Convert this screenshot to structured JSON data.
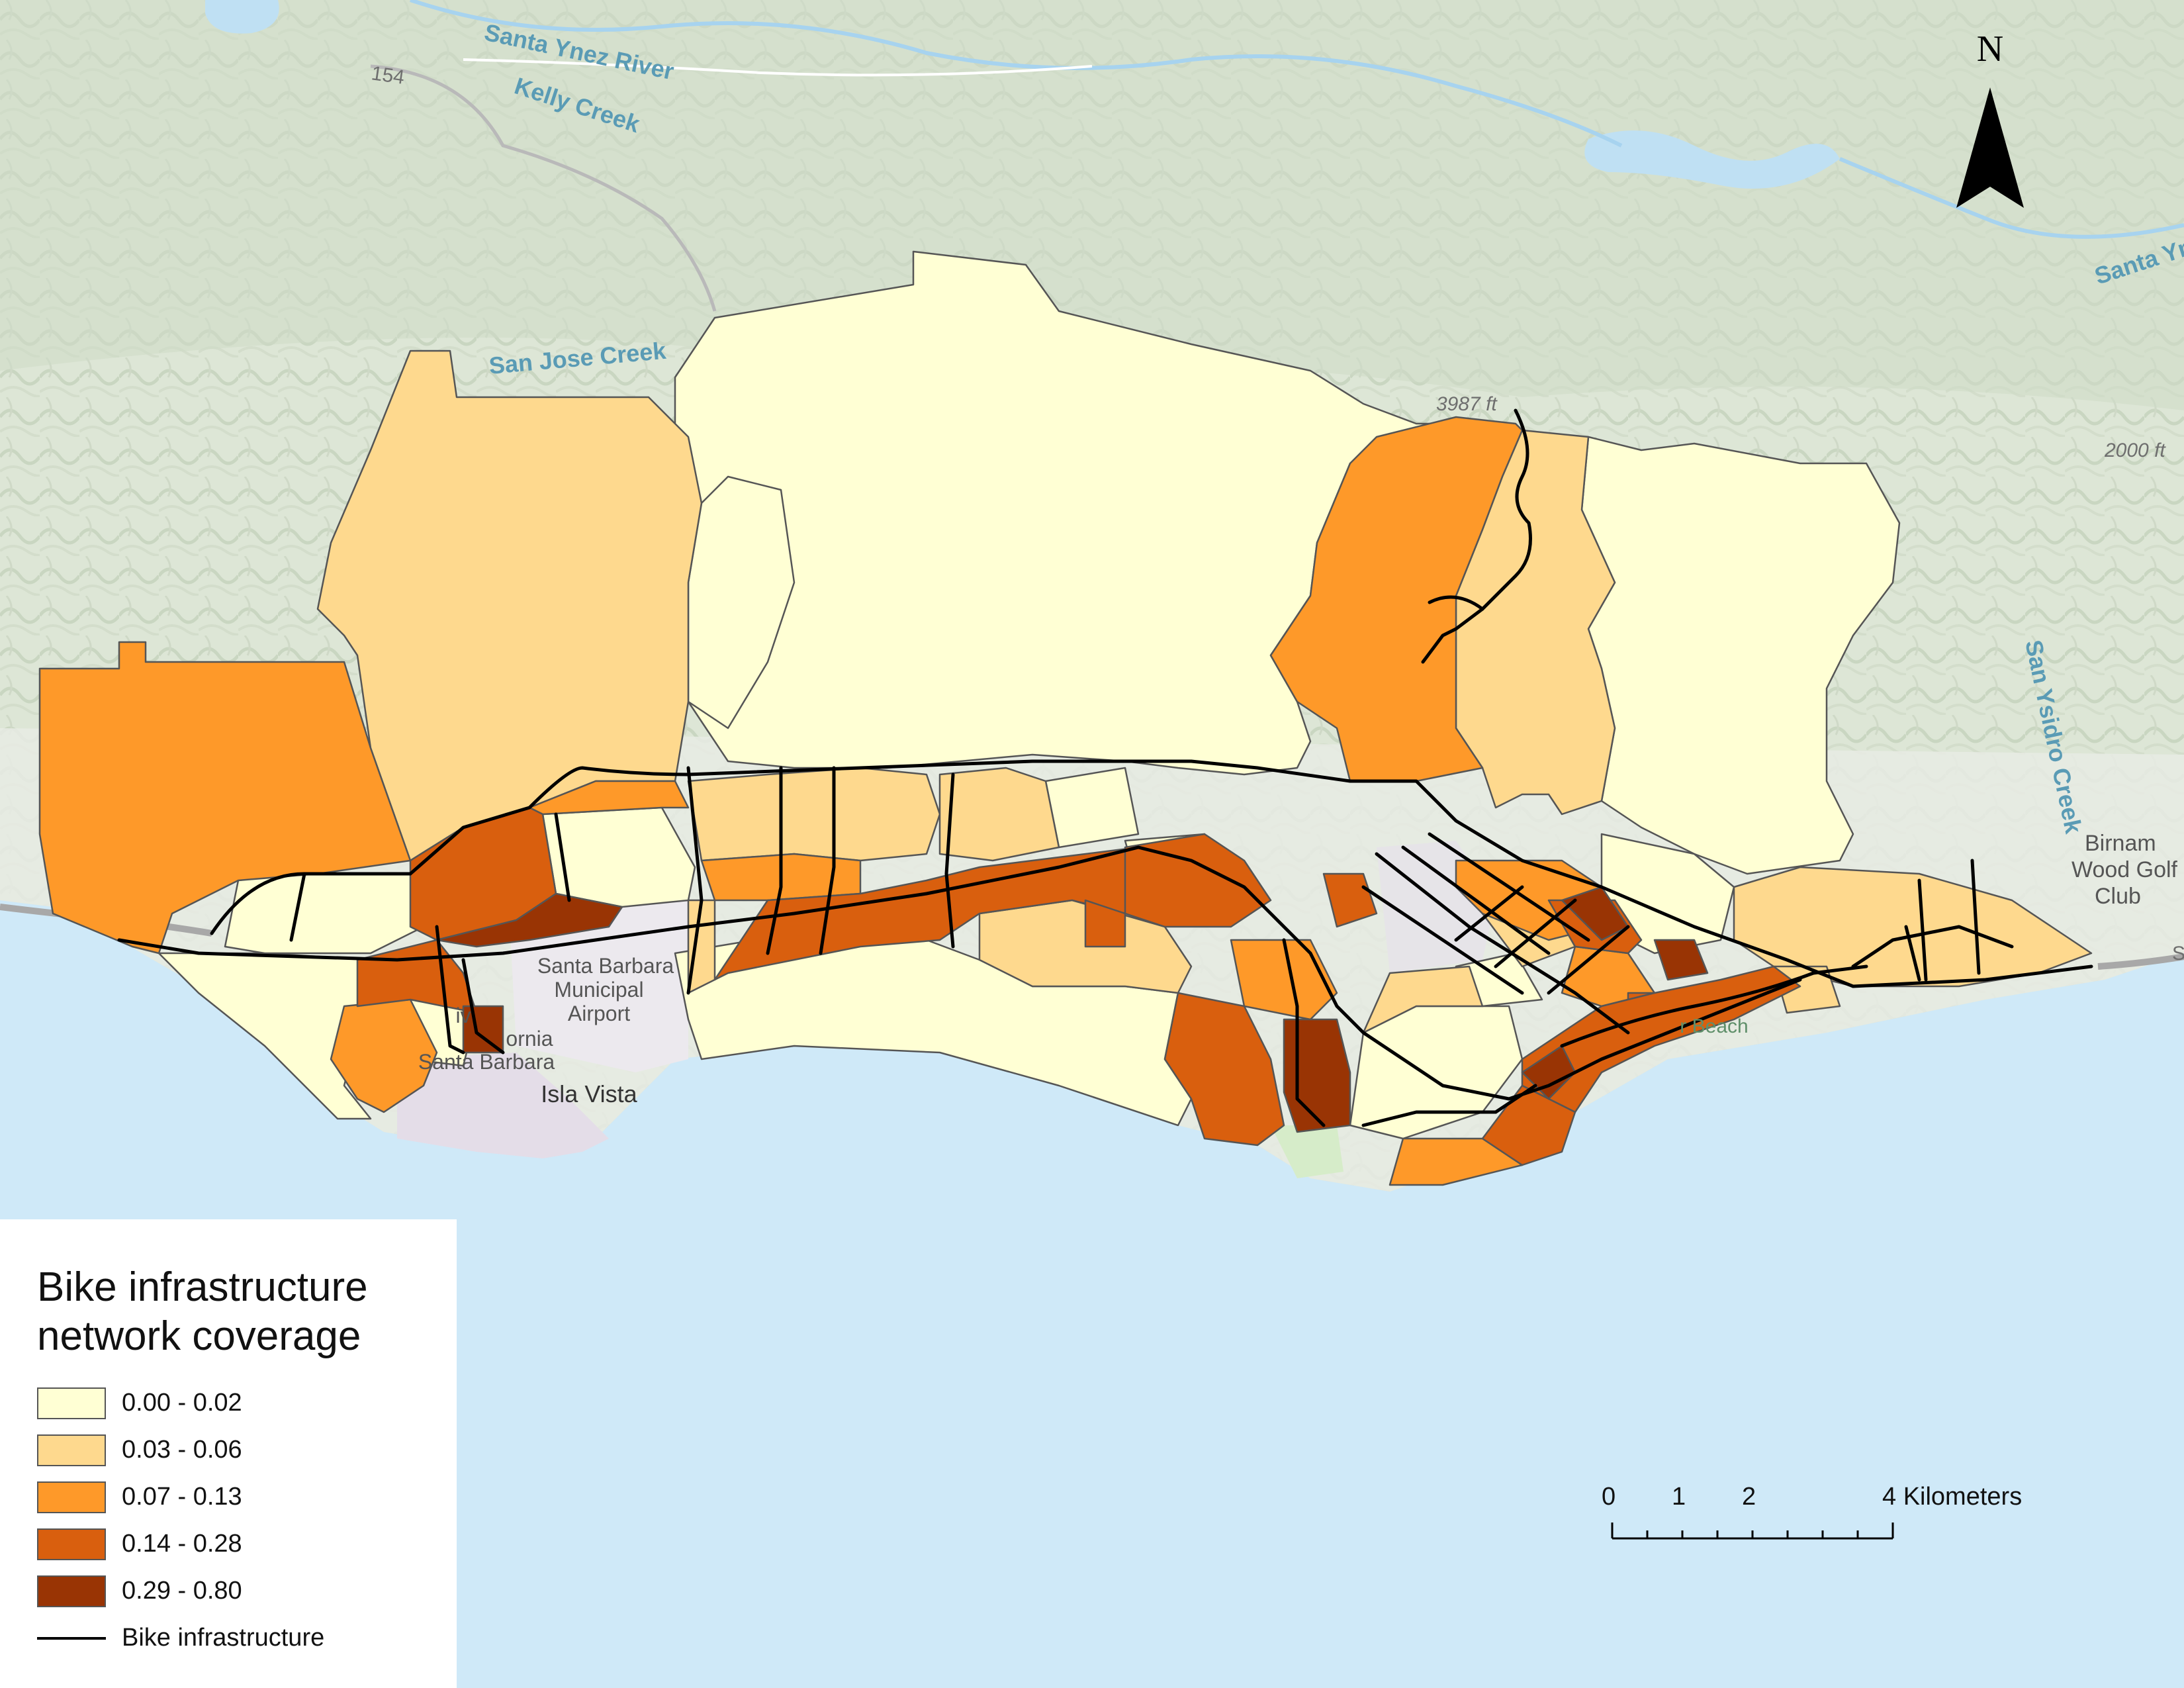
{
  "map": {
    "place_labels": [
      {
        "id": "santa-ynez-river",
        "text": "Santa Ynez River"
      },
      {
        "id": "kelly-creek",
        "text": "Kelly Creek"
      },
      {
        "id": "highway-154",
        "text": "154"
      },
      {
        "id": "san-jose-creek",
        "text": "San Jose Creek"
      },
      {
        "id": "peak-3987",
        "text": "3987 ft"
      },
      {
        "id": "contour-2000",
        "text": "2000 ft"
      },
      {
        "id": "santa-ynez-right",
        "text": "Santa Yn"
      },
      {
        "id": "san-ysidro-creek",
        "text": "San Ysidro Creek"
      },
      {
        "id": "birnam-1",
        "text": "Birnam"
      },
      {
        "id": "birnam-2",
        "text": "Wood Golf"
      },
      {
        "id": "birnam-3",
        "text": "Club"
      },
      {
        "id": "airport-1",
        "text": "Santa Barbara"
      },
      {
        "id": "airport-2",
        "text": "Municipal"
      },
      {
        "id": "airport-3",
        "text": "Airport"
      },
      {
        "id": "univ-1",
        "text": "iv"
      },
      {
        "id": "univ-2",
        "text": "ornia"
      },
      {
        "id": "univ-3",
        "text": "Santa Barbara"
      },
      {
        "id": "isla-vista",
        "text": "Isla Vista"
      },
      {
        "id": "beach",
        "text": "r Beach"
      },
      {
        "id": "edge-s",
        "text": "S"
      }
    ],
    "colors": {
      "ocean": "#cfe9f8",
      "land": "#dfe7d9",
      "class_1": "#ffffd4",
      "class_2": "#fed98e",
      "class_3": "#fe9929",
      "class_4": "#d95f0e",
      "class_5": "#993404",
      "bike_line": "#000000"
    }
  },
  "legend": {
    "title_line1": "Bike infrastructure",
    "title_line2": "network coverage",
    "classes": [
      {
        "label": "0.00 - 0.02",
        "color": "#ffffd4"
      },
      {
        "label": "0.03 - 0.06",
        "color": "#fed98e"
      },
      {
        "label": "0.07 - 0.13",
        "color": "#fe9929"
      },
      {
        "label": "0.14 - 0.28",
        "color": "#d95f0e"
      },
      {
        "label": "0.29 - 0.80",
        "color": "#993404"
      }
    ],
    "line_label": "Bike infrastructure"
  },
  "north_arrow": {
    "letter": "N"
  },
  "scale_bar": {
    "ticks": [
      "0",
      "1",
      "2"
    ],
    "end_label": "4 Kilometers"
  }
}
